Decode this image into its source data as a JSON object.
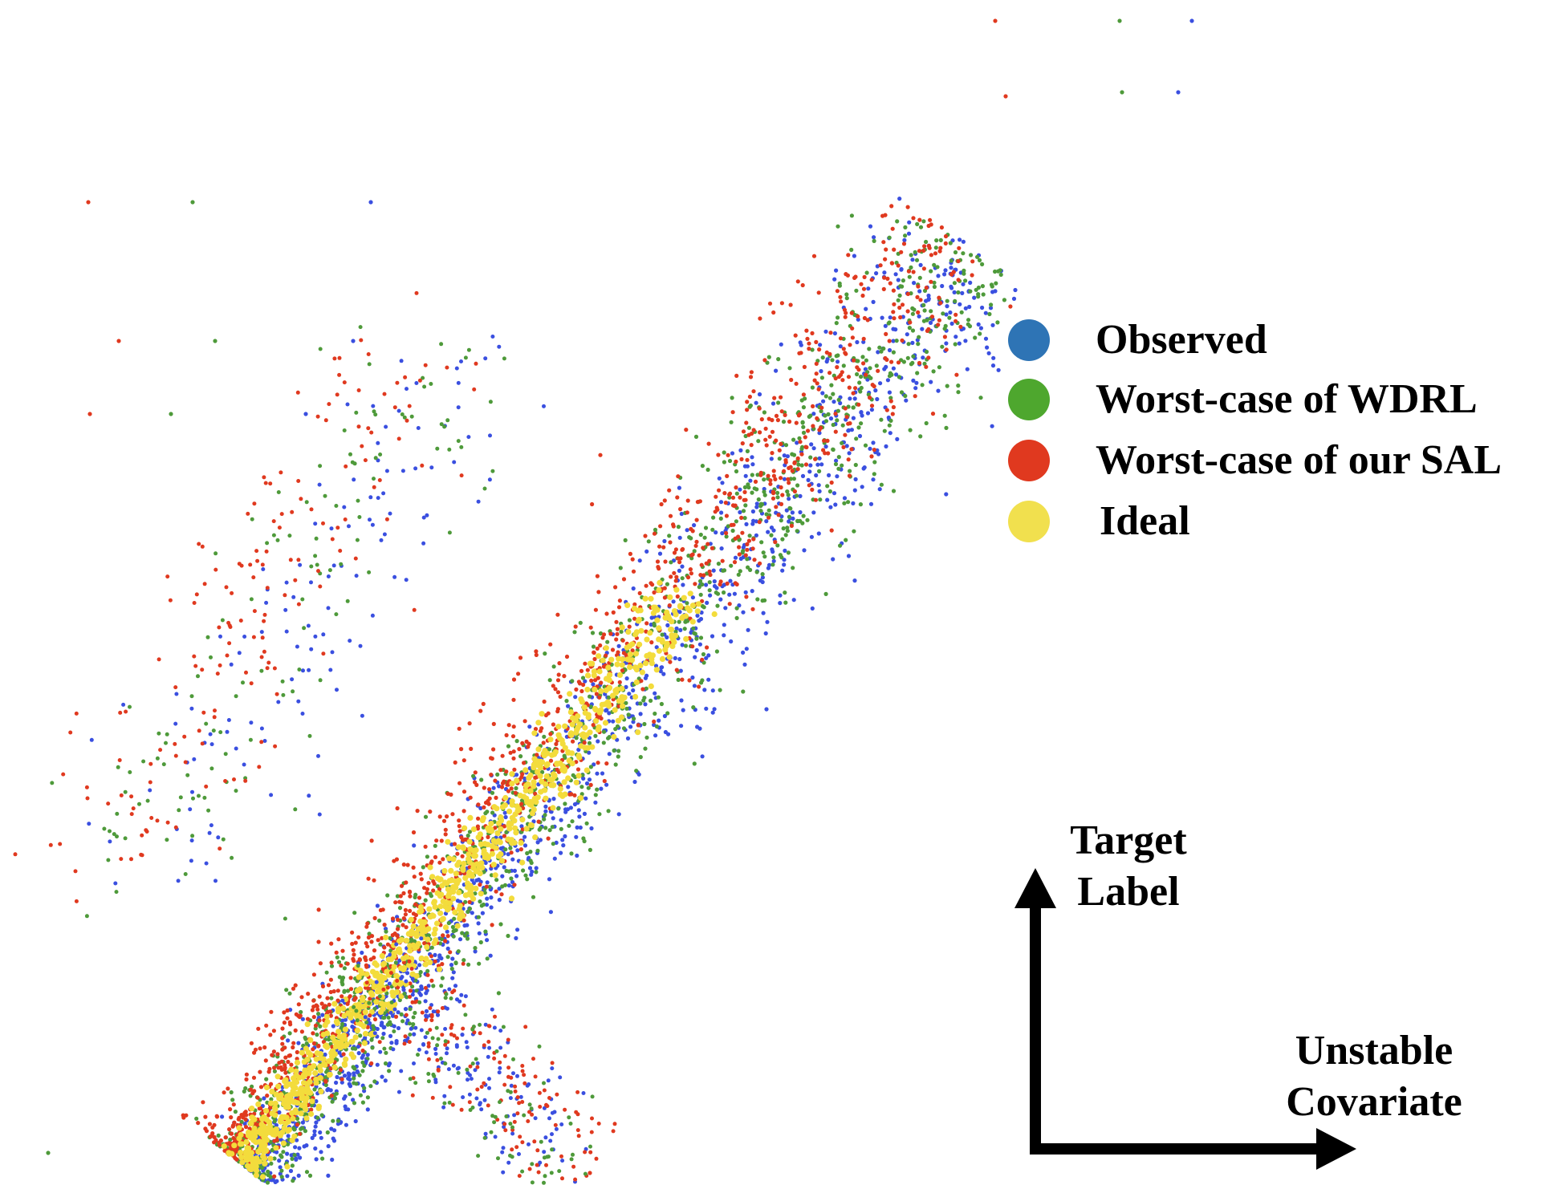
{
  "chart_data": {
    "type": "scatter",
    "title": "",
    "x_axis_label": "Unstable Covariate",
    "y_axis_label": "Target Label",
    "x_axis_label_lines": [
      "Unstable",
      "Covariate"
    ],
    "y_axis_label_lines": [
      "Target",
      "Label"
    ],
    "grid": false,
    "ticks": false,
    "legend_placement": "right",
    "series": [
      {
        "name": "Observed",
        "color": "#2E74B5",
        "dot_color": "#3A4FE0"
      },
      {
        "name": "Worst-case of WDRL",
        "color": "#4EA72E",
        "dot_color": "#4E9A3A"
      },
      {
        "name": "Worst-case of our SAL",
        "color": "#E0391F",
        "dot_color": "#E0391F"
      },
      {
        "name": "Ideal",
        "color": "#F1E04E",
        "dot_color": "#F3DC3C"
      }
    ]
  }
}
